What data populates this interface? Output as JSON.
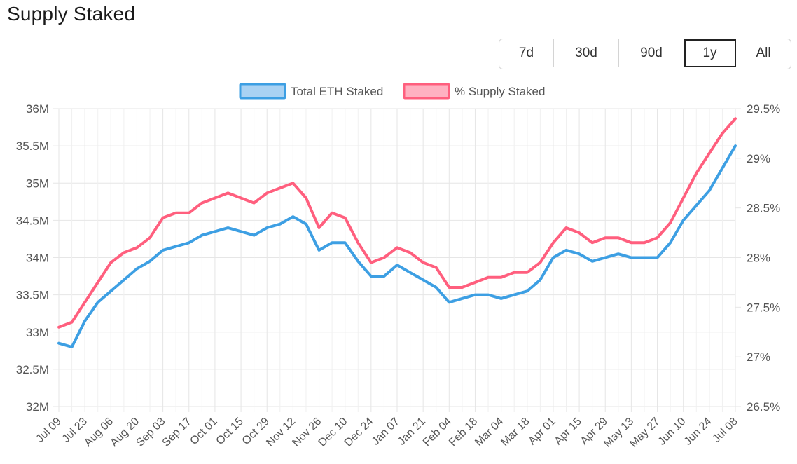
{
  "page": {
    "title": "Supply Staked"
  },
  "range_buttons": [
    {
      "label": "7d",
      "active": false
    },
    {
      "label": "30d",
      "active": false
    },
    {
      "label": "90d",
      "active": false
    },
    {
      "label": "1y",
      "active": true
    },
    {
      "label": "All",
      "active": false
    }
  ],
  "colors": {
    "eth": "#3d9fe3",
    "pct": "#ff5f7e",
    "ethFill": "#a9d2f3",
    "pctFill": "#ffb1c1",
    "grid": "#e6e6e6"
  },
  "chart_data": {
    "type": "line",
    "title": "Supply Staked",
    "legend_position": "top-center",
    "grid": true,
    "x_tick_labels": [
      "Jul 09",
      "Jul 23",
      "Aug 06",
      "Aug 20",
      "Sep 03",
      "Sep 17",
      "Oct 01",
      "Oct 15",
      "Oct 29",
      "Nov 12",
      "Nov 26",
      "Dec 10",
      "Dec 24",
      "Jan 07",
      "Jan 21",
      "Feb 04",
      "Feb 18",
      "Mar 04",
      "Mar 18",
      "Apr 01",
      "Apr 15",
      "Apr 29",
      "May 13",
      "May 27",
      "Jun 10",
      "Jun 24",
      "Jul 08"
    ],
    "y_left": {
      "ylim": [
        32000000,
        36000000
      ],
      "tick_labels": [
        "32M",
        "32.5M",
        "33M",
        "33.5M",
        "34M",
        "34.5M",
        "35M",
        "35.5M",
        "36M"
      ]
    },
    "y_right": {
      "ylim": [
        26.5,
        29.5
      ],
      "tick_labels": [
        "26.5%",
        "27%",
        "27.5%",
        "28%",
        "28.5%",
        "29%",
        "29.5%"
      ]
    },
    "series": [
      {
        "name": "Total ETH Staked",
        "axis": "left",
        "x": [
          "Jul 09",
          "Jul 16",
          "Jul 23",
          "Jul 30",
          "Aug 06",
          "Aug 13",
          "Aug 20",
          "Aug 27",
          "Sep 03",
          "Sep 10",
          "Sep 17",
          "Sep 24",
          "Oct 01",
          "Oct 08",
          "Oct 15",
          "Oct 22",
          "Oct 29",
          "Nov 05",
          "Nov 12",
          "Nov 19",
          "Nov 26",
          "Dec 03",
          "Dec 10",
          "Dec 17",
          "Dec 24",
          "Dec 31",
          "Jan 07",
          "Jan 14",
          "Jan 21",
          "Jan 28",
          "Feb 04",
          "Feb 11",
          "Feb 18",
          "Feb 25",
          "Mar 04",
          "Mar 11",
          "Mar 18",
          "Mar 25",
          "Apr 01",
          "Apr 08",
          "Apr 15",
          "Apr 22",
          "Apr 29",
          "May 06",
          "May 13",
          "May 20",
          "May 27",
          "Jun 03",
          "Jun 10",
          "Jun 17",
          "Jun 24",
          "Jul 01",
          "Jul 08"
        ],
        "values": [
          32850000,
          32800000,
          33150000,
          33400000,
          33550000,
          33700000,
          33850000,
          33950000,
          34100000,
          34150000,
          34200000,
          34300000,
          34350000,
          34400000,
          34350000,
          34300000,
          34400000,
          34450000,
          34550000,
          34450000,
          34100000,
          34200000,
          34200000,
          33950000,
          33750000,
          33750000,
          33900000,
          33800000,
          33700000,
          33600000,
          33400000,
          33450000,
          33500000,
          33500000,
          33450000,
          33500000,
          33550000,
          33700000,
          34000000,
          34100000,
          34050000,
          33950000,
          34000000,
          34050000,
          34000000,
          34000000,
          34000000,
          34200000,
          34500000,
          34700000,
          34900000,
          35200000,
          35500000
        ]
      },
      {
        "name": "% Supply Staked",
        "axis": "right",
        "x": [
          "Jul 09",
          "Jul 16",
          "Jul 23",
          "Jul 30",
          "Aug 06",
          "Aug 13",
          "Aug 20",
          "Aug 27",
          "Sep 03",
          "Sep 10",
          "Sep 17",
          "Sep 24",
          "Oct 01",
          "Oct 08",
          "Oct 15",
          "Oct 22",
          "Oct 29",
          "Nov 05",
          "Nov 12",
          "Nov 19",
          "Nov 26",
          "Dec 03",
          "Dec 10",
          "Dec 17",
          "Dec 24",
          "Dec 31",
          "Jan 07",
          "Jan 14",
          "Jan 21",
          "Jan 28",
          "Feb 04",
          "Feb 11",
          "Feb 18",
          "Feb 25",
          "Mar 04",
          "Mar 11",
          "Mar 18",
          "Mar 25",
          "Apr 01",
          "Apr 08",
          "Apr 15",
          "Apr 22",
          "Apr 29",
          "May 06",
          "May 13",
          "May 20",
          "May 27",
          "Jun 03",
          "Jun 10",
          "Jun 17",
          "Jun 24",
          "Jul 01",
          "Jul 08"
        ],
        "values": [
          27.3,
          27.35,
          27.55,
          27.75,
          27.95,
          28.05,
          28.1,
          28.2,
          28.4,
          28.45,
          28.45,
          28.55,
          28.6,
          28.65,
          28.6,
          28.55,
          28.65,
          28.7,
          28.75,
          28.6,
          28.3,
          28.45,
          28.4,
          28.15,
          27.95,
          28.0,
          28.1,
          28.05,
          27.95,
          27.9,
          27.7,
          27.7,
          27.75,
          27.8,
          27.8,
          27.85,
          27.85,
          27.95,
          28.15,
          28.3,
          28.25,
          28.15,
          28.2,
          28.2,
          28.15,
          28.15,
          28.2,
          28.35,
          28.6,
          28.85,
          29.05,
          29.25,
          29.4
        ]
      }
    ]
  }
}
